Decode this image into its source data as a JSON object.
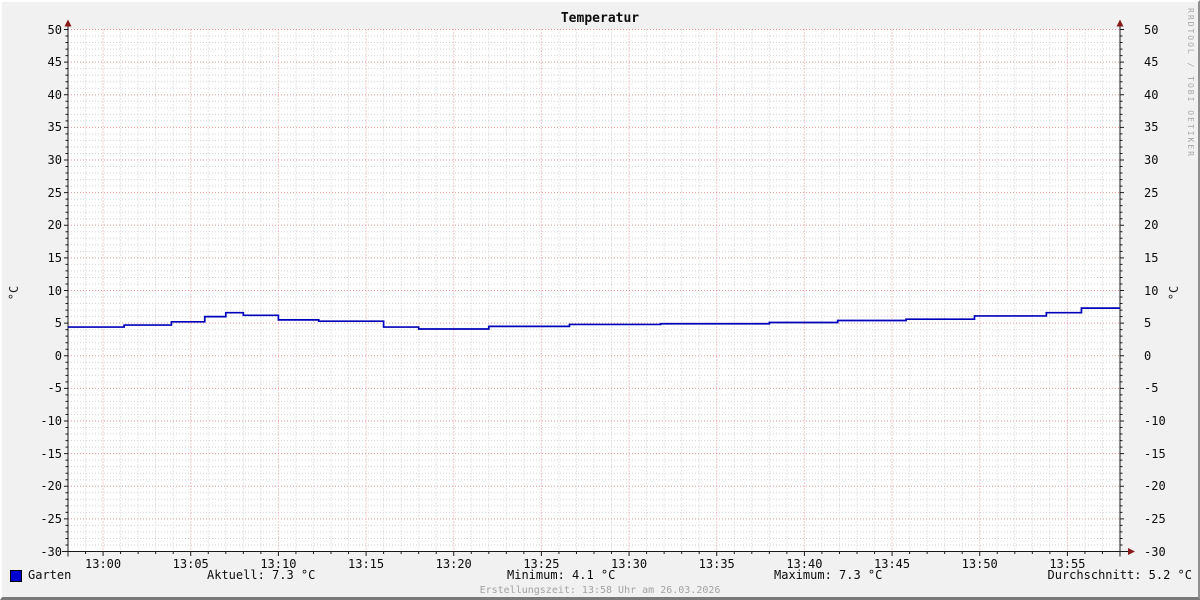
{
  "title": "Temperatur",
  "watermark": "RRDTOOL / TOBI OETIKER",
  "y_axis_unit_left": "°C",
  "y_axis_unit_right": "°C",
  "footer": "Erstellungszeit: 13:58 Uhr am 26.03.2026",
  "legend": {
    "series_label": "Garten",
    "series_color": "#0000cc",
    "aktuell": "Aktuell: 7.3 °C",
    "minimum": "Minimum: 4.1 °C",
    "maximum": "Maximum: 7.3 °C",
    "durchschnitt": "Durchschnitt: 5.2 °C"
  },
  "chart_data": {
    "type": "line",
    "line_style": "step-after",
    "title": "Temperatur",
    "ylabel": "°C",
    "ylim": [
      -30,
      50
    ],
    "y_tick_step": 5,
    "x_start_time": "12:58",
    "x_end_time": "13:58",
    "x_total_minutes": 60,
    "grid": true,
    "legend_position": "bottom",
    "x_ticks": [
      {
        "t": 2,
        "label": "13:00"
      },
      {
        "t": 7,
        "label": "13:05"
      },
      {
        "t": 12,
        "label": "13:10"
      },
      {
        "t": 17,
        "label": "13:15"
      },
      {
        "t": 22,
        "label": "13:20"
      },
      {
        "t": 27,
        "label": "13:25"
      },
      {
        "t": 32,
        "label": "13:30"
      },
      {
        "t": 37,
        "label": "13:35"
      },
      {
        "t": 42,
        "label": "13:40"
      },
      {
        "t": 47,
        "label": "13:45"
      },
      {
        "t": 52,
        "label": "13:50"
      },
      {
        "t": 57,
        "label": "13:55"
      }
    ],
    "series": [
      {
        "name": "Garten",
        "color": "#0000bb",
        "points": [
          [
            0,
            4.4
          ],
          [
            3.2,
            4.7
          ],
          [
            5.9,
            5.2
          ],
          [
            7.8,
            6.0
          ],
          [
            9.0,
            6.6
          ],
          [
            10.0,
            6.2
          ],
          [
            12.0,
            5.5
          ],
          [
            14.3,
            5.3
          ],
          [
            18.0,
            4.4
          ],
          [
            20.0,
            4.1
          ],
          [
            24.0,
            4.5
          ],
          [
            28.6,
            4.8
          ],
          [
            33.8,
            4.9
          ],
          [
            40.0,
            5.1
          ],
          [
            43.9,
            5.4
          ],
          [
            47.8,
            5.6
          ],
          [
            51.7,
            6.1
          ],
          [
            55.8,
            6.6
          ],
          [
            57.8,
            7.3
          ]
        ]
      }
    ],
    "stats": {
      "aktuell": 7.3,
      "minimum": 4.1,
      "maximum": 7.3,
      "durchschnitt": 5.2
    },
    "colors": {
      "canvas": "#ffffff",
      "minor_grid": "#d2d2d2",
      "major_grid": "#ea9999",
      "axis": "#1a1a1a",
      "arrow": "#8a1a1a"
    }
  }
}
